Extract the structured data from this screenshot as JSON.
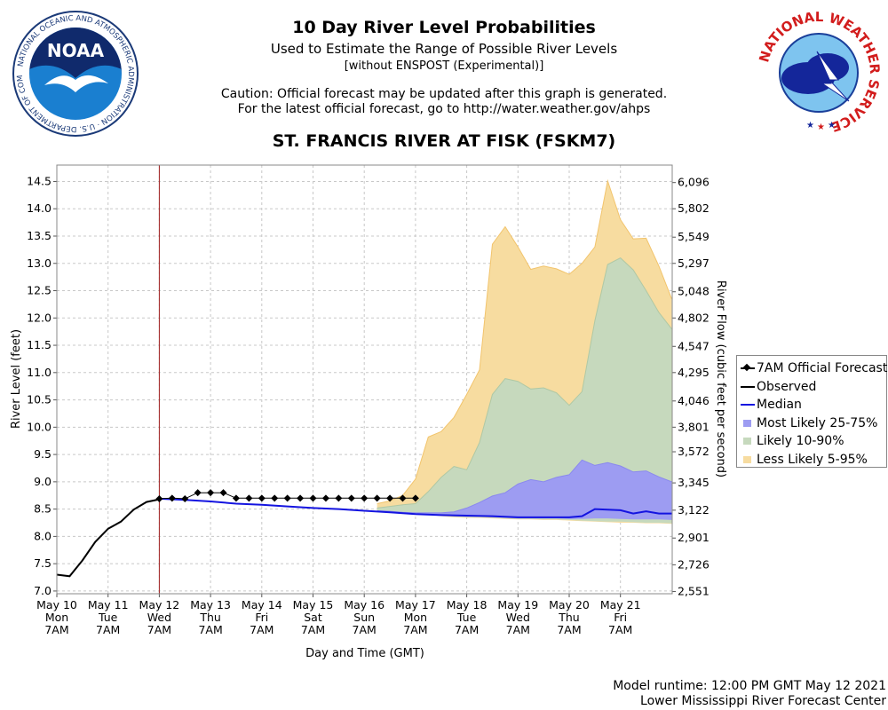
{
  "header": {
    "title": "10 Day River Level Probabilities",
    "subtitle": "Used to Estimate the Range of Possible River Levels",
    "note": "[without ENSPOST (Experimental)]",
    "caution1": "Caution: Official forecast may be updated after this graph is generated.",
    "caution2": "For the latest official forecast, go to http://water.weather.gov/ahps",
    "station": "ST. FRANCIS RIVER AT FISK (FSKM7)"
  },
  "logos": {
    "noaa_text": "NOAA",
    "noaa_ring_text": "NATIONAL OCEANIC AND ATMOSPHERIC ADMINISTRATION · U.S. DEPARTMENT OF COMMERCE",
    "nws_ring_text": "NATIONAL WEATHER SERVICE"
  },
  "footer": {
    "runtime": "Model runtime: 12:00 PM GMT May 12 2021",
    "center": "Lower Mississippi River Forecast Center"
  },
  "colors": {
    "less_likely": "#f7dca0",
    "less_likely_line": "#f2c46c",
    "likely": "#c6d9bd",
    "most_likely": "#9d9cf2",
    "median": "#1414e0",
    "observed": "#000000",
    "forecast": "#000000",
    "now_line": "#a02020",
    "grid": "#c8c8c8"
  },
  "chart_data": {
    "type": "area",
    "xlabel": "Day and Time (GMT)",
    "ylabel": "River Level (feet)",
    "y2label": "River Flow (cubic feet per second)",
    "xlim": [
      0,
      12
    ],
    "ylim": [
      6.95,
      14.8
    ],
    "yticks": [
      7.0,
      7.5,
      8.0,
      8.5,
      9.0,
      9.5,
      10.0,
      10.5,
      11.0,
      11.5,
      12.0,
      12.5,
      13.0,
      13.5,
      14.0,
      14.5
    ],
    "ytick_labels": [
      "7.0",
      "7.5",
      "8.0",
      "8.5",
      "9.0",
      "9.5",
      "10.0",
      "10.5",
      "11.0",
      "11.5",
      "12.0",
      "12.5",
      "13.0",
      "13.5",
      "14.0",
      "14.5"
    ],
    "y2ticks": [
      {
        "stage": 6.99,
        "label": "2,551"
      },
      {
        "stage": 7.48,
        "label": "2,726"
      },
      {
        "stage": 7.97,
        "label": "2,901"
      },
      {
        "stage": 8.48,
        "label": "3,122"
      },
      {
        "stage": 8.98,
        "label": "3,345"
      },
      {
        "stage": 9.55,
        "label": "3,572"
      },
      {
        "stage": 10.0,
        "label": "3,801"
      },
      {
        "stage": 10.48,
        "label": "4,046"
      },
      {
        "stage": 11.0,
        "label": "4,295"
      },
      {
        "stage": 11.48,
        "label": "4,547"
      },
      {
        "stage": 12.0,
        "label": "4,802"
      },
      {
        "stage": 12.48,
        "label": "5,048"
      },
      {
        "stage": 13.0,
        "label": "5,297"
      },
      {
        "stage": 13.48,
        "label": "5,549"
      },
      {
        "stage": 14.0,
        "label": "5,802"
      },
      {
        "stage": 14.48,
        "label": "6,096"
      }
    ],
    "xticks": [
      {
        "x": 0,
        "lines": [
          "May 10",
          "Mon",
          "7AM"
        ]
      },
      {
        "x": 1,
        "lines": [
          "May 11",
          "Tue",
          "7AM"
        ]
      },
      {
        "x": 2,
        "lines": [
          "May 12",
          "Wed",
          "7AM"
        ]
      },
      {
        "x": 3,
        "lines": [
          "May 13",
          "Thu",
          "7AM"
        ]
      },
      {
        "x": 4,
        "lines": [
          "May 14",
          "Fri",
          "7AM"
        ]
      },
      {
        "x": 5,
        "lines": [
          "May 15",
          "Sat",
          "7AM"
        ]
      },
      {
        "x": 6,
        "lines": [
          "May 16",
          "Sun",
          "7AM"
        ]
      },
      {
        "x": 7,
        "lines": [
          "May 17",
          "Mon",
          "7AM"
        ]
      },
      {
        "x": 8,
        "lines": [
          "May 18",
          "Tue",
          "7AM"
        ]
      },
      {
        "x": 9,
        "lines": [
          "May 19",
          "Wed",
          "7AM"
        ]
      },
      {
        "x": 10,
        "lines": [
          "May 20",
          "Thu",
          "7AM"
        ]
      },
      {
        "x": 11,
        "lines": [
          "May 21",
          "Fri",
          "7AM"
        ]
      }
    ],
    "now_x": 2.0,
    "legend": [
      "7AM Official Forecast",
      "Observed",
      "Median",
      "Most Likely 25-75%",
      "Likely 10-90%",
      "Less Likely 5-95%"
    ],
    "series": [
      {
        "name": "Observed",
        "x": [
          0,
          0.25,
          0.5,
          0.75,
          1.0,
          1.25,
          1.5,
          1.75,
          2.0
        ],
        "y": [
          7.3,
          7.27,
          7.56,
          7.9,
          8.14,
          8.27,
          8.49,
          8.63,
          8.68
        ]
      },
      {
        "name": "7AM Official Forecast",
        "x": [
          2.0,
          2.25,
          2.5,
          2.75,
          3.0,
          3.25,
          3.5,
          3.75,
          4.0,
          4.25,
          4.5,
          4.75,
          5.0,
          5.25,
          5.5,
          5.75,
          6.0,
          6.25,
          6.5,
          6.75,
          7.0
        ],
        "y": [
          8.69,
          8.7,
          8.69,
          8.8,
          8.8,
          8.8,
          8.7,
          8.7,
          8.7,
          8.7,
          8.7,
          8.7,
          8.7,
          8.7,
          8.7,
          8.7,
          8.7,
          8.7,
          8.7,
          8.7,
          8.7
        ]
      },
      {
        "name": "Median",
        "x": [
          2.0,
          2.5,
          3.0,
          3.5,
          4.0,
          4.5,
          5.0,
          5.5,
          6.0,
          6.5,
          7.0,
          7.5,
          8.0,
          8.5,
          9.0,
          9.5,
          10.0,
          10.25,
          10.5,
          10.75,
          11.0,
          11.25,
          11.5,
          11.75,
          12.0
        ],
        "y": [
          8.69,
          8.67,
          8.64,
          8.6,
          8.58,
          8.55,
          8.52,
          8.5,
          8.47,
          8.44,
          8.41,
          8.39,
          8.38,
          8.37,
          8.35,
          8.35,
          8.35,
          8.37,
          8.5,
          8.49,
          8.48,
          8.42,
          8.46,
          8.42,
          8.42
        ]
      },
      {
        "name": "Less Likely 5-95%",
        "x": [
          6.25,
          6.5,
          6.75,
          7.0,
          7.25,
          7.5,
          7.75,
          8.0,
          8.25,
          8.5,
          8.75,
          9.0,
          9.25,
          9.5,
          9.75,
          10.0,
          10.25,
          10.5,
          10.75,
          11.0,
          11.25,
          11.5,
          11.75,
          12.0
        ],
        "upper": [
          8.6,
          8.65,
          8.75,
          9.05,
          9.82,
          9.92,
          10.18,
          10.6,
          11.05,
          13.35,
          13.67,
          13.3,
          12.89,
          12.95,
          12.9,
          12.8,
          13.0,
          13.3,
          14.51,
          13.8,
          13.45,
          13.46,
          12.95,
          12.35
        ],
        "lower": [
          8.48,
          8.45,
          8.42,
          8.41,
          8.4,
          8.37,
          8.35,
          8.34,
          8.34,
          8.33,
          8.32,
          8.31,
          8.31,
          8.3,
          8.3,
          8.29,
          8.28,
          8.27,
          8.26,
          8.25,
          8.25,
          8.24,
          8.24,
          8.23
        ]
      },
      {
        "name": "Likely 10-90%",
        "x": [
          6.25,
          6.5,
          6.75,
          7.0,
          7.25,
          7.5,
          7.75,
          8.0,
          8.25,
          8.5,
          8.75,
          9.0,
          9.25,
          9.5,
          9.75,
          10.0,
          10.25,
          10.5,
          10.75,
          11.0,
          11.25,
          11.5,
          11.75,
          12.0
        ],
        "upper": [
          8.52,
          8.55,
          8.58,
          8.6,
          8.82,
          9.08,
          9.28,
          9.22,
          9.72,
          10.6,
          10.89,
          10.84,
          10.7,
          10.72,
          10.63,
          10.4,
          10.65,
          11.95,
          12.98,
          13.1,
          12.88,
          12.5,
          12.1,
          11.8
        ],
        "lower": [
          8.46,
          8.44,
          8.42,
          8.41,
          8.4,
          8.38,
          8.36,
          8.35,
          8.35,
          8.34,
          8.33,
          8.32,
          8.32,
          8.31,
          8.31,
          8.3,
          8.29,
          8.28,
          8.27,
          8.27,
          8.26,
          8.25,
          8.25,
          8.24
        ]
      },
      {
        "name": "Most Likely 25-75%",
        "x": [
          6.25,
          6.5,
          6.75,
          7.0,
          7.25,
          7.5,
          7.75,
          8.0,
          8.25,
          8.5,
          8.75,
          9.0,
          9.25,
          9.5,
          9.75,
          10.0,
          10.25,
          10.5,
          10.75,
          11.0,
          11.25,
          11.5,
          11.75,
          12.0
        ],
        "upper": [
          8.47,
          8.46,
          8.44,
          8.43,
          8.43,
          8.43,
          8.45,
          8.52,
          8.62,
          8.74,
          8.8,
          8.96,
          9.04,
          9.0,
          9.08,
          9.13,
          9.4,
          9.3,
          9.35,
          9.29,
          9.18,
          9.2,
          9.09,
          9.0
        ],
        "lower": [
          8.45,
          8.44,
          8.42,
          8.41,
          8.4,
          8.38,
          8.37,
          8.36,
          8.36,
          8.35,
          8.34,
          8.33,
          8.33,
          8.33,
          8.33,
          8.32,
          8.32,
          8.33,
          8.33,
          8.32,
          8.31,
          8.31,
          8.31,
          8.3
        ]
      }
    ]
  }
}
